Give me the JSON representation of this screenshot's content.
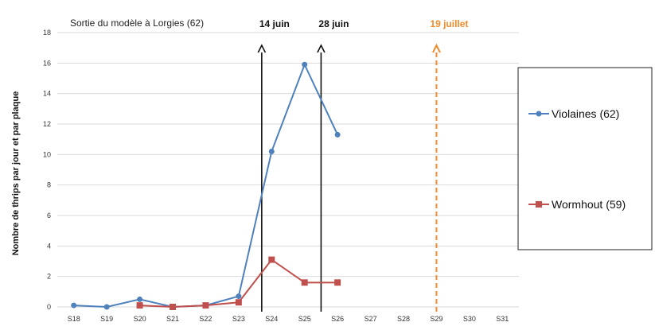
{
  "chart_data": {
    "type": "line",
    "title": "Sortie du modèle à Lorgies (62)",
    "xlabel": "",
    "ylabel": "Nombre de thrips par jour et par plaque",
    "categories": [
      "S18",
      "S19",
      "S20",
      "S21",
      "S22",
      "S23",
      "S24",
      "S25",
      "S26",
      "S27",
      "S28",
      "S29",
      "S30",
      "S31"
    ],
    "ylim": [
      0,
      18
    ],
    "yticks": [
      "0",
      "2",
      "4",
      "6",
      "8",
      "10",
      "12",
      "14",
      "16",
      "18"
    ],
    "grid": true,
    "legend_position": "right",
    "series": [
      {
        "name": "Violaines (62)",
        "color": "#4f81bd",
        "marker": "circle",
        "values": [
          0.1,
          0.0,
          0.5,
          0.0,
          0.1,
          0.7,
          10.2,
          15.9,
          11.3,
          null,
          null,
          null,
          null,
          null
        ]
      },
      {
        "name": "Wormhout (59)",
        "color": "#c0504d",
        "marker": "square",
        "values": [
          null,
          null,
          0.1,
          0.0,
          0.1,
          0.3,
          3.1,
          1.6,
          1.6,
          null,
          null,
          null,
          null,
          null
        ]
      }
    ],
    "annotations": [
      {
        "label": "14 juin",
        "x": 23.7,
        "color": "#111111",
        "style": "solid"
      },
      {
        "label": "28 juin",
        "x": 25.5,
        "color": "#111111",
        "style": "solid"
      },
      {
        "label": "19 juillet",
        "x": 29,
        "color": "#f08a2c",
        "style": "dashed"
      }
    ]
  }
}
